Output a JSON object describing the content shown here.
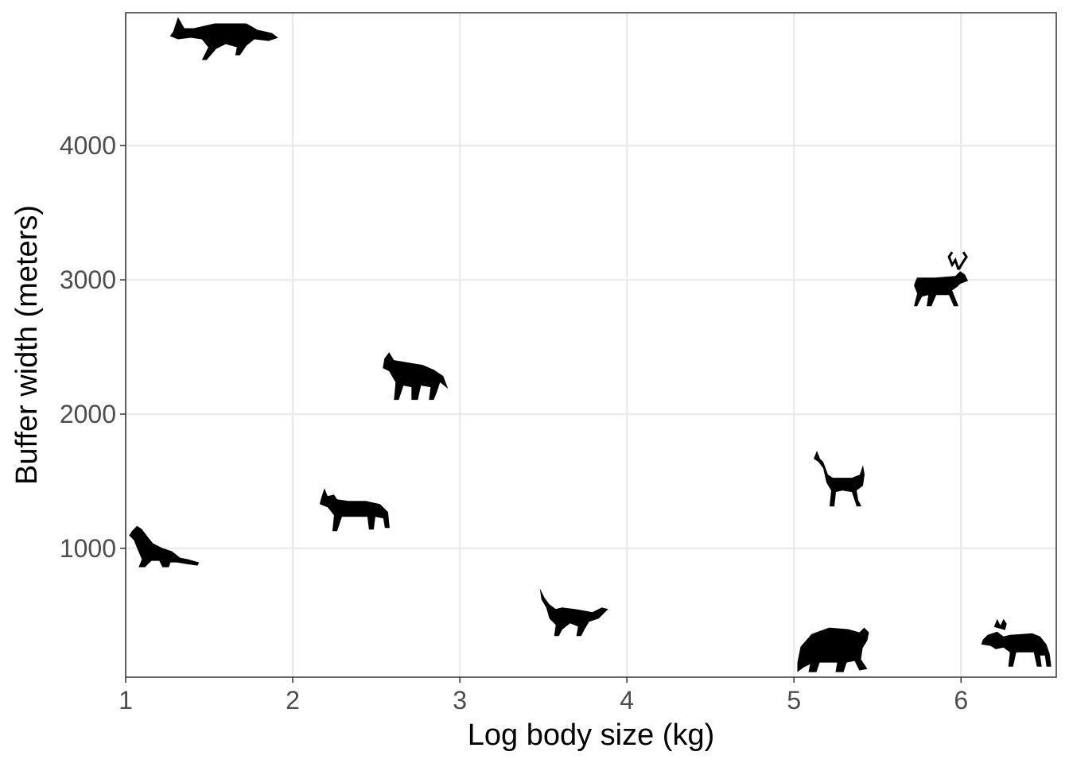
{
  "chart_data": {
    "type": "scatter",
    "title": "",
    "xlabel": "Log body size (kg)",
    "ylabel": "Buffer width (meters)",
    "xlim": [
      1,
      6.57
    ],
    "ylim": [
      40,
      4990
    ],
    "x_ticks": [
      1,
      2,
      3,
      4,
      5,
      6
    ],
    "x_tick_labels": [
      "1",
      "2",
      "3",
      "4",
      "5",
      "6"
    ],
    "y_ticks": [
      1000,
      2000,
      3000,
      4000
    ],
    "y_tick_labels": [
      "1000",
      "2000",
      "3000",
      "4000"
    ],
    "grid": true,
    "marker": "animal silhouette",
    "points": [
      {
        "icon": "marten-icon",
        "x": 1.23,
        "y": 990
      },
      {
        "icon": "fox-icon",
        "x": 1.58,
        "y": 4780
      },
      {
        "icon": "lynx-icon",
        "x": 2.38,
        "y": 1270
      },
      {
        "icon": "coyote-icon",
        "x": 2.72,
        "y": 2260
      },
      {
        "icon": "wolf-icon",
        "x": 3.66,
        "y": 500
      },
      {
        "icon": "bear-icon",
        "x": 5.23,
        "y": 220
      },
      {
        "icon": "deer-icon",
        "x": 5.28,
        "y": 1490
      },
      {
        "icon": "caribou-icon",
        "x": 5.88,
        "y": 2970
      },
      {
        "icon": "moose-icon",
        "x": 6.34,
        "y": 260
      }
    ]
  },
  "colors": {
    "panel_border": "#333333",
    "grid": "#ebebeb",
    "tick_label": "#4d4d4d",
    "marker": "#000000"
  }
}
